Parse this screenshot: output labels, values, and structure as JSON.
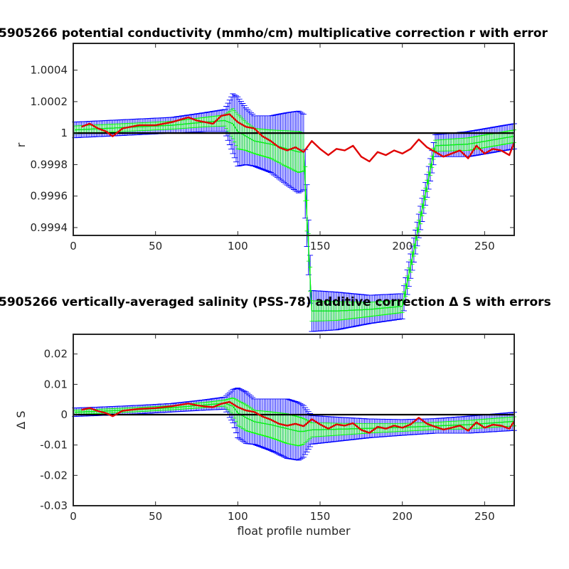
{
  "chart_data": [
    {
      "type": "line",
      "title": "5905266 potential conductivity (mmho/cm) multiplicative correction r with error",
      "xlabel": "",
      "ylabel": "r",
      "xlim": [
        0,
        268
      ],
      "ylim": [
        0.99935,
        1.00057
      ],
      "xticks": [
        0,
        50,
        100,
        150,
        200,
        250
      ],
      "xtick_labels": [
        "0",
        "50",
        "100",
        "150",
        "200",
        "250"
      ],
      "yticks": [
        0.9994,
        0.9996,
        0.9998,
        1.0,
        1.0002,
        1.0004
      ],
      "ytick_labels": [
        "0.9994",
        "0.9996",
        "0.9998",
        "1",
        "1.0002",
        "1.0004"
      ],
      "grid": false,
      "reference_line": {
        "y": 1.0,
        "color": "#000000"
      },
      "series": [
        {
          "role": "fit_with_2x_error",
          "color": "#0000ff",
          "x": [
            0,
            20,
            40,
            60,
            80,
            92,
            97,
            100,
            105,
            110,
            120,
            130,
            137,
            140,
            145,
            160,
            180,
            200,
            220,
            240,
            268
          ],
          "center": [
            1.00002,
            1.00003,
            1.00004,
            1.00005,
            1.00007,
            1.00008,
            1.00006,
            1.00001,
            0.99998,
            0.99995,
            0.99993,
            0.9999,
            0.99988,
            0.99988,
            0.99887,
            0.99887,
            0.99888,
            0.9989,
            0.99992,
            0.99993,
            0.99998
          ],
          "half_width": [
            5e-05,
            5e-05,
            5e-05,
            5e-05,
            6e-05,
            7e-05,
            0.00019,
            0.00022,
            0.00018,
            0.00016,
            0.00018,
            0.00023,
            0.00026,
            0.00024,
            0.00013,
            0.00012,
            9e-05,
            8e-05,
            7e-05,
            8e-05,
            8e-05
          ]
        },
        {
          "role": "fit_with_1x_error",
          "color": "#00ff00",
          "x": [
            0,
            20,
            40,
            60,
            80,
            92,
            97,
            100,
            105,
            110,
            120,
            130,
            137,
            140,
            145,
            160,
            180,
            200,
            220,
            240,
            268
          ],
          "center": [
            1.00002,
            1.00003,
            1.00004,
            1.00005,
            1.00007,
            1.00008,
            1.00006,
            1.00001,
            0.99998,
            0.99995,
            0.99993,
            0.9999,
            0.99988,
            0.99988,
            0.99887,
            0.99887,
            0.99888,
            0.9989,
            0.99992,
            0.99993,
            0.99998
          ],
          "half_width": [
            2.5e-05,
            2.5e-05,
            2.5e-05,
            2.5e-05,
            3e-05,
            3.5e-05,
            9.5e-05,
            0.00011,
            9e-05,
            8e-05,
            9e-05,
            0.000115,
            0.00013,
            0.00012,
            6.5e-05,
            6e-05,
            4.5e-05,
            4e-05,
            3.5e-05,
            4e-05,
            4e-05
          ]
        },
        {
          "role": "point_estimates",
          "color": "#e00000",
          "x": [
            5,
            10,
            15,
            20,
            24,
            30,
            40,
            50,
            60,
            70,
            75,
            80,
            85,
            90,
            95,
            100,
            105,
            110,
            115,
            120,
            125,
            130,
            135,
            140,
            145,
            150,
            155,
            160,
            165,
            170,
            175,
            180,
            185,
            190,
            195,
            200,
            205,
            210,
            215,
            220,
            225,
            230,
            235,
            240,
            245,
            250,
            255,
            260,
            265,
            268
          ],
          "y": [
            1.00004,
            1.00006,
            1.00003,
            1.00001,
            0.99998,
            1.00003,
            1.00005,
            1.00005,
            1.00007,
            1.0001,
            1.00008,
            1.00007,
            1.00006,
            1.00011,
            1.00012,
            1.00007,
            1.00004,
            1.00003,
            0.99998,
            0.99995,
            0.99991,
            0.99989,
            0.99991,
            0.99988,
            0.99995,
            0.9999,
            0.99986,
            0.9999,
            0.99989,
            0.99992,
            0.99985,
            0.99982,
            0.99988,
            0.99986,
            0.99989,
            0.99987,
            0.9999,
            0.99996,
            0.99991,
            0.99988,
            0.99985,
            0.99987,
            0.99989,
            0.99984,
            0.99992,
            0.99987,
            0.9999,
            0.99989,
            0.99986,
            0.99994
          ]
        }
      ]
    },
    {
      "type": "line",
      "title": "5905266 vertically-averaged salinity (PSS-78) additive correction Δ S with errors",
      "xlabel": "float profile number",
      "ylabel": "Δ S",
      "xlim": [
        0,
        268
      ],
      "ylim": [
        -0.03,
        0.0265
      ],
      "xticks": [
        0,
        50,
        100,
        150,
        200,
        250
      ],
      "xtick_labels": [
        "0",
        "50",
        "100",
        "150",
        "200",
        "250"
      ],
      "yticks": [
        -0.03,
        -0.02,
        -0.01,
        0,
        0.01,
        0.02
      ],
      "ytick_labels": [
        "-0.03",
        "-0.02",
        "-0.01",
        "0",
        "0.01",
        "0.02"
      ],
      "grid": false,
      "reference_line": {
        "y": 0,
        "color": "#000000"
      },
      "series": [
        {
          "role": "fit_with_2x_error",
          "color": "#0000ff",
          "x": [
            0,
            20,
            40,
            60,
            80,
            92,
            97,
            100,
            105,
            110,
            120,
            130,
            137,
            140,
            145,
            160,
            180,
            200,
            220,
            240,
            268
          ],
          "center": [
            0.0008,
            0.0012,
            0.0017,
            0.0023,
            0.0032,
            0.0038,
            0.0028,
            0.0006,
            -0.001,
            -0.0023,
            -0.0033,
            -0.0046,
            -0.0055,
            -0.0055,
            -0.005,
            -0.0048,
            -0.0045,
            -0.0042,
            -0.0037,
            -0.0033,
            -0.0022
          ],
          "half_width": [
            0.0014,
            0.0014,
            0.0014,
            0.0014,
            0.0017,
            0.002,
            0.0055,
            0.0082,
            0.0085,
            0.0075,
            0.0085,
            0.0098,
            0.0095,
            0.0085,
            0.0047,
            0.004,
            0.0031,
            0.0026,
            0.0024,
            0.0028,
            0.003
          ]
        },
        {
          "role": "fit_with_1x_error",
          "color": "#00ff00",
          "x": [
            0,
            20,
            40,
            60,
            80,
            92,
            97,
            100,
            105,
            110,
            120,
            130,
            137,
            140,
            145,
            160,
            180,
            200,
            220,
            240,
            268
          ],
          "center": [
            0.0008,
            0.0012,
            0.0017,
            0.0023,
            0.0032,
            0.0038,
            0.0028,
            0.0006,
            -0.001,
            -0.0023,
            -0.0033,
            -0.0046,
            -0.0055,
            -0.0055,
            -0.005,
            -0.0048,
            -0.0045,
            -0.0042,
            -0.0037,
            -0.0033,
            -0.0022
          ],
          "half_width": [
            0.0007,
            0.0007,
            0.0007,
            0.0007,
            0.00085,
            0.001,
            0.00275,
            0.0041,
            0.00425,
            0.00375,
            0.00425,
            0.0049,
            0.00475,
            0.00425,
            0.00235,
            0.002,
            0.00155,
            0.0013,
            0.0012,
            0.0014,
            0.0015
          ]
        },
        {
          "role": "point_estimates",
          "color": "#e00000",
          "x": [
            5,
            10,
            15,
            20,
            24,
            30,
            40,
            50,
            60,
            70,
            75,
            80,
            85,
            90,
            95,
            100,
            105,
            110,
            115,
            120,
            125,
            130,
            135,
            140,
            145,
            150,
            155,
            160,
            165,
            170,
            175,
            180,
            185,
            190,
            195,
            200,
            205,
            210,
            215,
            220,
            225,
            230,
            235,
            240,
            245,
            250,
            255,
            260,
            265,
            268
          ],
          "y": [
            0.0016,
            0.0022,
            0.0012,
            0.0005,
            -0.0005,
            0.0013,
            0.0019,
            0.0022,
            0.0028,
            0.0037,
            0.0031,
            0.0027,
            0.0025,
            0.0036,
            0.0042,
            0.0025,
            0.0014,
            0.0009,
            -0.0006,
            -0.0016,
            -0.003,
            -0.0036,
            -0.003,
            -0.0038,
            -0.0015,
            -0.0032,
            -0.0046,
            -0.0032,
            -0.0036,
            -0.0028,
            -0.005,
            -0.006,
            -0.004,
            -0.0046,
            -0.0036,
            -0.0043,
            -0.0032,
            -0.001,
            -0.003,
            -0.004,
            -0.0049,
            -0.0043,
            -0.0036,
            -0.0053,
            -0.0025,
            -0.0043,
            -0.0033,
            -0.0036,
            -0.0046,
            -0.0022
          ]
        }
      ]
    }
  ]
}
